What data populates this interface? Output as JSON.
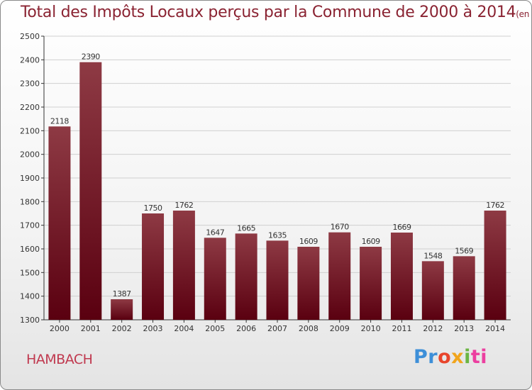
{
  "title": "Total des Impôts Locaux perçus par la Commune de 2000 à 2014",
  "unit_label": "(en milliers d'€)",
  "commune": "HAMBACH",
  "logo_parts": [
    "Pr",
    "o",
    "x",
    "i",
    "ti"
  ],
  "colors": {
    "bar_top": "#8e3a44",
    "bar_bottom": "#5a0010",
    "title": "#8a2332",
    "commune": "#c0394f",
    "grid": "#d0d0d0"
  },
  "chart_data": {
    "type": "bar",
    "title": "Total des Impôts Locaux perçus par la Commune de 2000 à 2014",
    "xlabel": "",
    "ylabel": "en milliers d'€",
    "ylim": [
      1300,
      2500
    ],
    "yticks": [
      1300,
      1400,
      1500,
      1600,
      1700,
      1800,
      1900,
      2000,
      2100,
      2200,
      2300,
      2400,
      2500
    ],
    "categories": [
      "2000",
      "2001",
      "2002",
      "2003",
      "2004",
      "2005",
      "2006",
      "2007",
      "2008",
      "2009",
      "2010",
      "2011",
      "2012",
      "2013",
      "2014"
    ],
    "values": [
      2118,
      2390,
      1387,
      1750,
      1762,
      1647,
      1665,
      1635,
      1609,
      1670,
      1609,
      1669,
      1548,
      1569,
      1762
    ],
    "grid": true
  }
}
